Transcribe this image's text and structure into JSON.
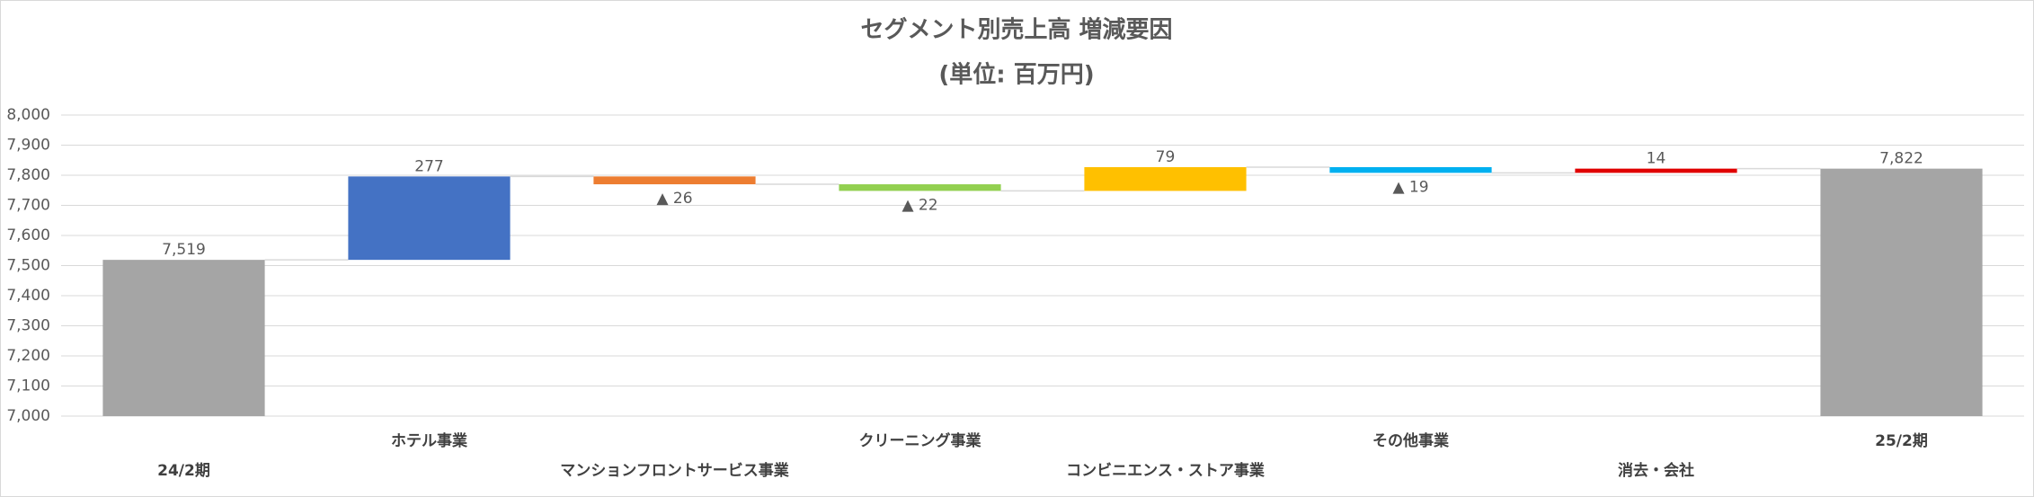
{
  "chart_data": {
    "type": "waterfall",
    "title": "セグメント別売上高 増減要因",
    "subtitle": "(単位: 百万円)",
    "categories": [
      "24/2期",
      "ホテル事業",
      "マンションフロントサービス事業",
      "クリーニング事業",
      "コンビニエンス・ストア事業",
      "その他事業",
      "消去・会社",
      "25/2期"
    ],
    "measures": [
      "total",
      "relative",
      "relative",
      "relative",
      "relative",
      "relative",
      "relative",
      "total"
    ],
    "values": [
      7519,
      277,
      -26,
      -22,
      79,
      -19,
      14,
      7822
    ],
    "value_labels": [
      "7,519",
      "277",
      "▲ 26",
      "▲ 22",
      "79",
      "▲ 19",
      "14",
      "7,822"
    ],
    "colors": [
      "#a5a5a5",
      "#4472c4",
      "#ed7d31",
      "#92d050",
      "#ffc000",
      "#00b0f0",
      "#e00000",
      "#a5a5a5"
    ],
    "ylim": [
      7000,
      8000
    ],
    "yticks": [
      {
        "value": 7000,
        "label": "7,000"
      },
      {
        "value": 7100,
        "label": "7,100"
      },
      {
        "value": 7200,
        "label": "7,200"
      },
      {
        "value": 7300,
        "label": "7,300"
      },
      {
        "value": 7400,
        "label": "7,400"
      },
      {
        "value": 7500,
        "label": "7,500"
      },
      {
        "value": 7600,
        "label": "7,600"
      },
      {
        "value": 7700,
        "label": "7,700"
      },
      {
        "value": 7800,
        "label": "7,800"
      },
      {
        "value": 7900,
        "label": "7,900"
      },
      {
        "value": 8000,
        "label": "8,000"
      }
    ],
    "grid": true
  }
}
